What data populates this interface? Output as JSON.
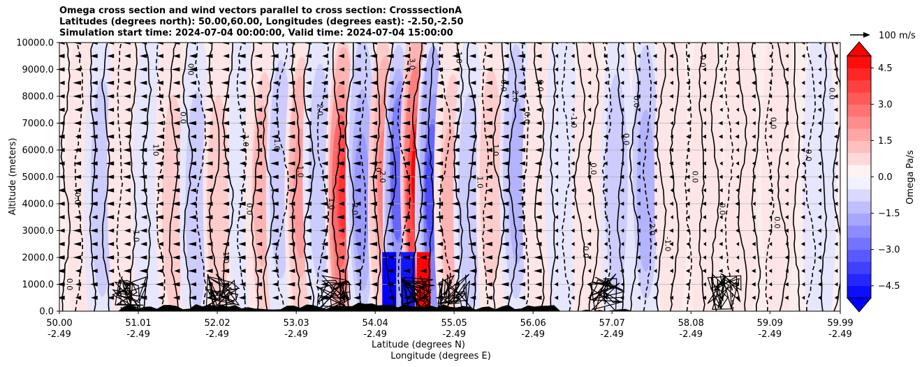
{
  "figure": {
    "title_lines": [
      "Omega cross section and wind vectors parallel to cross section: CrosssectionA",
      "Latitudes (degrees north): 50.00,60.00, Longitudes (degrees east): -2.50,-2.50",
      "Simulation start time: 2024-07-04 00:00:00, Valid time: 2024-07-04 15:00:00"
    ]
  },
  "chart_data": {
    "type": "heatmap",
    "title": "Omega cross section and wind vectors parallel to cross section: CrosssectionA",
    "xlabel_lines": [
      "Latitude (degrees N)",
      "Longitude (degrees E)"
    ],
    "ylabel": "Altitude (meters)",
    "xlim": [
      50.0,
      59.99
    ],
    "ylim": [
      0,
      10000
    ],
    "grid": true,
    "x_ticks": [
      {
        "lat": "50.00",
        "lon": "-2.49",
        "value": 50.0
      },
      {
        "lat": "51.01",
        "lon": "-2.49",
        "value": 51.01
      },
      {
        "lat": "52.02",
        "lon": "-2.49",
        "value": 52.02
      },
      {
        "lat": "53.03",
        "lon": "-2.49",
        "value": 53.03
      },
      {
        "lat": "54.04",
        "lon": "-2.49",
        "value": 54.04
      },
      {
        "lat": "55.05",
        "lon": "-2.49",
        "value": 55.05
      },
      {
        "lat": "56.06",
        "lon": "-2.49",
        "value": 56.06
      },
      {
        "lat": "57.07",
        "lon": "-2.49",
        "value": 57.07
      },
      {
        "lat": "58.08",
        "lon": "-2.49",
        "value": 58.08
      },
      {
        "lat": "59.09",
        "lon": "-2.49",
        "value": 59.09
      },
      {
        "lat": "59.99",
        "lon": "-2.49",
        "value": 59.99
      }
    ],
    "y_ticks": [
      {
        "label": "0.0",
        "value": 0
      },
      {
        "label": "1000.0",
        "value": 1000
      },
      {
        "label": "2000.0",
        "value": 2000
      },
      {
        "label": "3000.0",
        "value": 3000
      },
      {
        "label": "4000.0",
        "value": 4000
      },
      {
        "label": "5000.0",
        "value": 5000
      },
      {
        "label": "6000.0",
        "value": 6000
      },
      {
        "label": "7000.0",
        "value": 7000
      },
      {
        "label": "8000.0",
        "value": 8000
      },
      {
        "label": "9000.0",
        "value": 9000
      },
      {
        "label": "10000.0",
        "value": 10000
      }
    ],
    "omega_bands": [
      {
        "lat": 50.3,
        "omega": 0.6
      },
      {
        "lat": 50.55,
        "omega": -0.8
      },
      {
        "lat": 50.85,
        "omega": 0.5
      },
      {
        "lat": 51.15,
        "omega": -0.6
      },
      {
        "lat": 51.45,
        "omega": 0.9
      },
      {
        "lat": 51.75,
        "omega": -1.2
      },
      {
        "lat": 52.05,
        "omega": 1.1
      },
      {
        "lat": 52.35,
        "omega": -0.7
      },
      {
        "lat": 52.6,
        "omega": 1.4
      },
      {
        "lat": 52.85,
        "omega": -1.0
      },
      {
        "lat": 53.1,
        "omega": 1.8
      },
      {
        "lat": 53.35,
        "omega": -1.1
      },
      {
        "lat": 53.62,
        "omega": 3.8
      },
      {
        "lat": 53.88,
        "omega": -2.2
      },
      {
        "lat": 54.15,
        "omega": 2.5
      },
      {
        "lat": 54.35,
        "omega": -2.8
      },
      {
        "lat": 54.58,
        "omega": 4.8
      },
      {
        "lat": 54.78,
        "omega": -3.6
      },
      {
        "lat": 55.02,
        "omega": 1.3
      },
      {
        "lat": 55.25,
        "omega": -0.9
      },
      {
        "lat": 55.55,
        "omega": 0.8
      },
      {
        "lat": 55.85,
        "omega": -1.3
      },
      {
        "lat": 56.15,
        "omega": 0.7
      },
      {
        "lat": 56.45,
        "omega": -0.5
      },
      {
        "lat": 56.8,
        "omega": 0.6
      },
      {
        "lat": 57.15,
        "omega": -0.9
      },
      {
        "lat": 57.5,
        "omega": -1.6
      },
      {
        "lat": 57.85,
        "omega": 0.5
      },
      {
        "lat": 58.25,
        "omega": 0.3
      },
      {
        "lat": 58.7,
        "omega": 0.4
      },
      {
        "lat": 59.2,
        "omega": 0.3
      },
      {
        "lat": 59.7,
        "omega": -0.4
      }
    ],
    "contour_labels": [
      {
        "text": "0.0",
        "lat": 50.2,
        "alt": 4200
      },
      {
        "text": "0.0",
        "lat": 50.1,
        "alt": 1000
      },
      {
        "text": "1.0",
        "lat": 50.95,
        "alt": 2800
      },
      {
        "text": "0.0",
        "lat": 51.55,
        "alt": 7200
      },
      {
        "text": "1.0",
        "lat": 51.2,
        "alt": 6000
      },
      {
        "text": "0.0",
        "lat": 51.65,
        "alt": 9000
      },
      {
        "text": "1.0",
        "lat": 52.1,
        "alt": 2000
      },
      {
        "text": "0.0",
        "lat": 52.4,
        "alt": 3800
      },
      {
        "text": "1.0",
        "lat": 52.75,
        "alt": 6200
      },
      {
        "text": "-1.0",
        "lat": 52.35,
        "alt": 6400
      },
      {
        "text": "2.0",
        "lat": 53.3,
        "alt": 7500
      },
      {
        "text": "1.0",
        "lat": 53.05,
        "alt": 5200
      },
      {
        "text": "1.0",
        "lat": 53.45,
        "alt": 4000
      },
      {
        "text": "2.0",
        "lat": 53.75,
        "alt": 3800
      },
      {
        "text": "1.0",
        "lat": 54.05,
        "alt": 5400
      },
      {
        "text": "2.0",
        "lat": 54.1,
        "alt": 5000
      },
      {
        "text": "3.0",
        "lat": 54.48,
        "alt": 9200
      },
      {
        "text": "-1.0",
        "lat": 55.08,
        "alt": 9500
      },
      {
        "text": "0.0",
        "lat": 55.65,
        "alt": 8400
      },
      {
        "text": "1.0",
        "lat": 55.55,
        "alt": 6000
      },
      {
        "text": "1.0",
        "lat": 55.35,
        "alt": 4800
      },
      {
        "text": "2.0",
        "lat": 55.8,
        "alt": 8000
      },
      {
        "text": "0.0",
        "lat": 55.95,
        "alt": 7200
      },
      {
        "text": "0.0",
        "lat": 56.12,
        "alt": 8400
      },
      {
        "text": "-1.0",
        "lat": 56.55,
        "alt": 7100
      },
      {
        "text": "0.0",
        "lat": 56.8,
        "alt": 5300
      },
      {
        "text": "0.0",
        "lat": 57.22,
        "alt": 6400
      },
      {
        "text": "0.0",
        "lat": 57.35,
        "alt": 7800
      },
      {
        "text": "0.0",
        "lat": 58.1,
        "alt": 5000
      },
      {
        "text": "0.0",
        "lat": 58.2,
        "alt": 9300
      },
      {
        "text": "0.0",
        "lat": 58.45,
        "alt": 3800
      },
      {
        "text": "0.0",
        "lat": 59.1,
        "alt": 7000
      },
      {
        "text": "0.0",
        "lat": 59.15,
        "alt": 3300
      },
      {
        "text": "0.0",
        "lat": 59.55,
        "alt": 5800
      },
      {
        "text": "0.0",
        "lat": 59.85,
        "alt": 8100
      },
      {
        "text": "-1.0",
        "lat": 57.75,
        "alt": 2500
      },
      {
        "text": "-2.0",
        "lat": 57.55,
        "alt": 3100
      },
      {
        "text": "0.0",
        "lat": 56.7,
        "alt": 2200
      }
    ],
    "quiver_key": {
      "label": "100 m/s",
      "speed": 100
    },
    "colorbar": {
      "label": "Omega Pa/s",
      "min": -5.0,
      "max": 5.0,
      "step": 0.5,
      "extend": "both",
      "ticks": [
        {
          "label": "4.5",
          "value": 4.5
        },
        {
          "label": "3.0",
          "value": 3.0
        },
        {
          "label": "1.5",
          "value": 1.5
        },
        {
          "label": "0.0",
          "value": 0.0
        },
        {
          "label": "−1.5",
          "value": -1.5
        },
        {
          "label": "−3.0",
          "value": -3.0
        },
        {
          "label": "−4.5",
          "value": -4.5
        }
      ]
    }
  }
}
